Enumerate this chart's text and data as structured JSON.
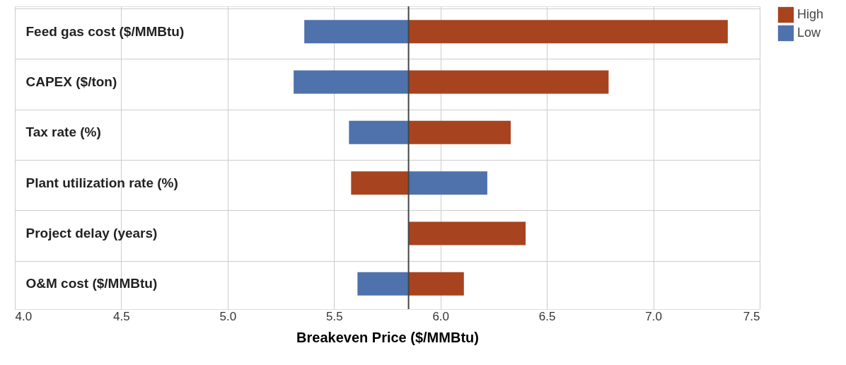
{
  "chart_data": {
    "type": "bar",
    "orientation": "horizontal",
    "xlabel": "Breakeven Price ($/MMBtu)",
    "categories": [
      "Feed gas cost ($/MMBtu)",
      "CAPEX ($/ton)",
      "Tax rate (%)",
      "Plant utilization rate (%)",
      "Project delay (years)",
      "O&M cost ($/MMBtu)"
    ],
    "series": [
      {
        "name": "High",
        "color": "#a8431f",
        "base": [
          5.85,
          5.85,
          5.85,
          5.58,
          5.85,
          5.85
        ],
        "values": [
          1.5,
          0.94,
          0.48,
          0.27,
          0.55,
          0.26
        ]
      },
      {
        "name": "Low",
        "color": "#4f72ad",
        "base": [
          5.36,
          5.31,
          5.57,
          5.85,
          null,
          5.61
        ],
        "values": [
          0.49,
          0.54,
          0.28,
          0.37,
          null,
          0.24
        ]
      }
    ],
    "xlim": [
      4.0,
      7.5
    ],
    "xticks": [
      {
        "value": 4,
        "label": "4.0"
      },
      4.5,
      {
        "value": 5,
        "label": "5.0"
      },
      5.5,
      {
        "value": 6,
        "label": "6.0"
      },
      6.5,
      {
        "value": 7,
        "label": "7.0"
      },
      7.5
    ],
    "ref_lines": [
      {
        "axis": "x",
        "value": 5.85,
        "color": "#444444"
      }
    ],
    "grid": true,
    "legend": "top right"
  }
}
